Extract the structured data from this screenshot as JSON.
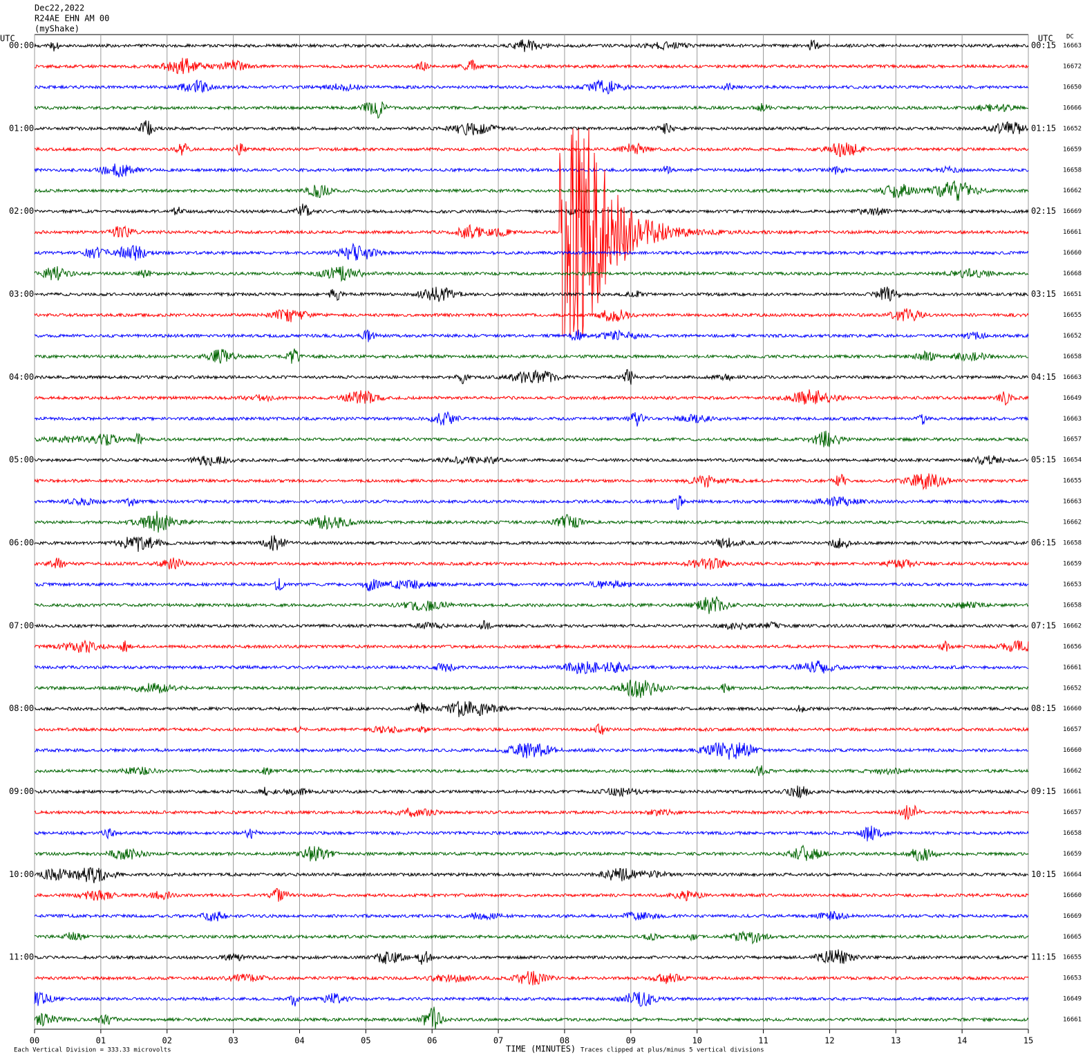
{
  "header": {
    "date": "Dec22,2022",
    "station": "R24AE EHN AM 00",
    "network": "(myShake)"
  },
  "left_axis_title": "UTC",
  "right_axis_title": "UTC",
  "dc_title": "DC",
  "left_time_labels": [
    "00:00",
    "01:00",
    "02:00",
    "03:00",
    "04:00",
    "05:00",
    "06:00",
    "07:00",
    "08:00",
    "09:00",
    "10:00",
    "11:00"
  ],
  "right_time_labels": [
    "00:15",
    "01:15",
    "02:15",
    "03:15",
    "04:15",
    "05:15",
    "06:15",
    "07:15",
    "08:15",
    "09:15",
    "10:15",
    "11:15"
  ],
  "dc_values": [
    "16663",
    "16672",
    "16650",
    "16666",
    "16652",
    "16659",
    "16658",
    "16662",
    "16669",
    "16661",
    "16660",
    "16668",
    "16651",
    "16655",
    "16652",
    "16658",
    "16663",
    "16649",
    "16663",
    "16657",
    "16654",
    "16655",
    "16663",
    "16662",
    "16658",
    "16659",
    "16653",
    "16658",
    "16662",
    "16656",
    "16661",
    "16652",
    "16660",
    "16657",
    "16660",
    "16662",
    "16661",
    "16657",
    "16658",
    "16659",
    "16664",
    "16660",
    "16669",
    "16665",
    "16655",
    "16653",
    "16649",
    "16661"
  ],
  "trace_colors": [
    "#000000",
    "#ff0000",
    "#0000ff",
    "#006400"
  ],
  "x_axis": {
    "title": "TIME (MINUTES)",
    "tick_labels": [
      "00",
      "01",
      "02",
      "03",
      "04",
      "05",
      "06",
      "07",
      "08",
      "09",
      "10",
      "11",
      "12",
      "13",
      "14",
      "15"
    ]
  },
  "footer": {
    "scale_note": "Each Vertical Division =  333.33 microvolts",
    "clip_note": "Traces clipped at plus/minus 5 vertical divisions"
  }
}
